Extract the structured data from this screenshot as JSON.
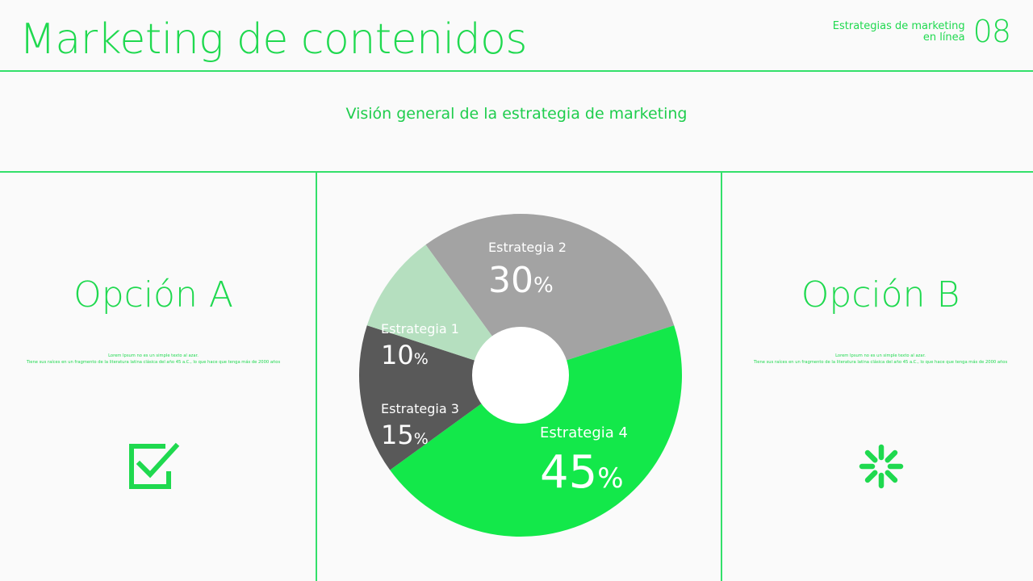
{
  "header": {
    "title": "Marketing de contenidos",
    "section_label_line1": "Estrategias de marketing",
    "section_label_line2": "en línea",
    "page_number": "08"
  },
  "subtitle": "Visión general de la estrategia de marketing",
  "option_a": {
    "title": "Opción A",
    "desc_line1": "Lorem Ipsum no es un simple texto al azar.",
    "desc_line2": "Tiene sus raíces en un fragmento de la literatura latina clásica del año 45 a.C., lo que hace que tenga más de 2000 años"
  },
  "option_b": {
    "title": "Opción B",
    "desc_line1": "Lorem Ipsum no es un simple texto al azar.",
    "desc_line2": "Tiene sus raíces en un fragmento de la literatura latina clásica del año 45 a.C., lo que hace que tenga más de 2000 años"
  },
  "icons": {
    "option_a": "checkbox-check-icon",
    "option_b": "loading-spinner-icon"
  },
  "colors": {
    "accent": "#1fd94f"
  },
  "chart_data": {
    "type": "pie",
    "style": "donut",
    "slices": [
      {
        "label": "Estrategia 2",
        "value": 30,
        "display": "30",
        "unit": "%",
        "color": "#a3a3a3",
        "text_color": "#ffffff"
      },
      {
        "label": "Estrategia 4",
        "value": 45,
        "display": "45",
        "unit": "%",
        "color": "#13e84a",
        "text_color": "#ffffff"
      },
      {
        "label": "Estrategia 3",
        "value": 15,
        "display": "15",
        "unit": "%",
        "color": "#595959",
        "text_color": "#ffffff"
      },
      {
        "label": "Estrategia 1",
        "value": 10,
        "display": "10",
        "unit": "%",
        "color": "#b5dfbf",
        "text_color": "#ffffff"
      }
    ]
  }
}
